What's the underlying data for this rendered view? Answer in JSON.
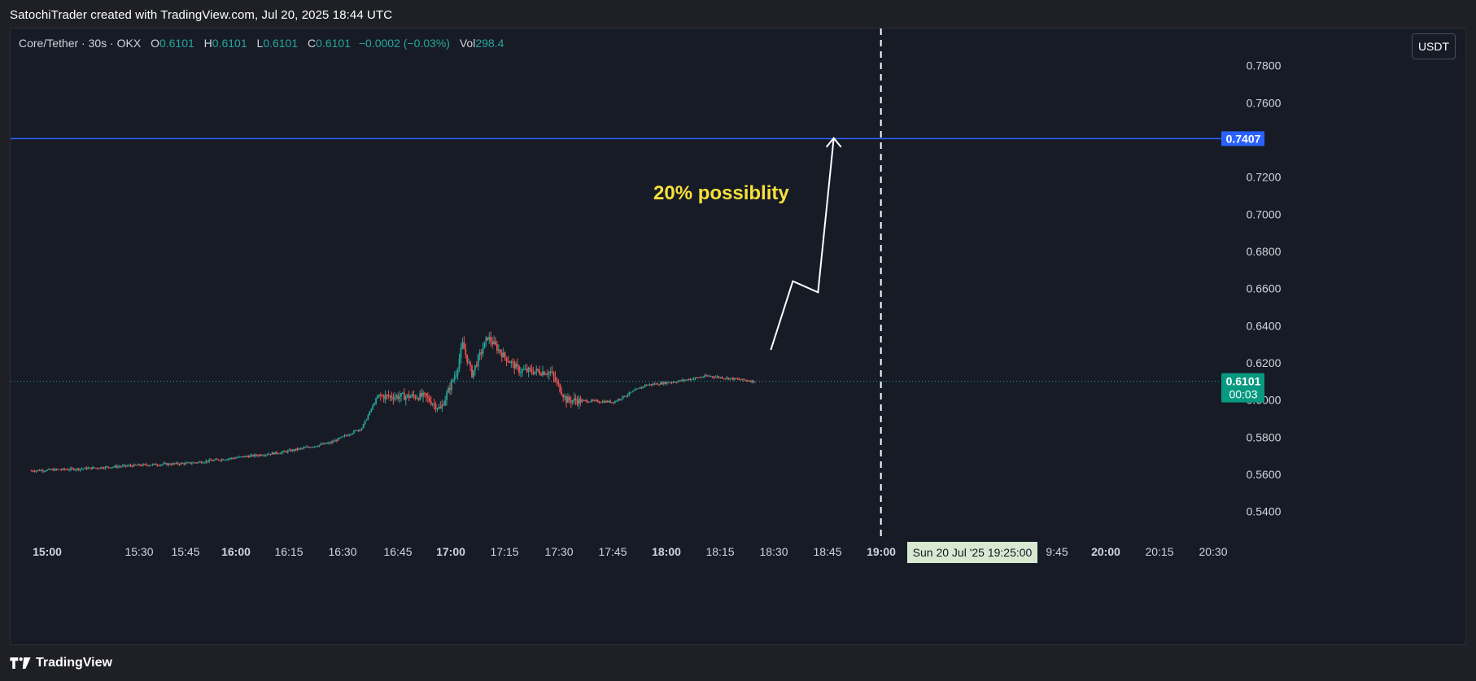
{
  "header": {
    "attribution": "SatochiTrader created with TradingView.com, Jul 20, 2025 18:44 UTC"
  },
  "legend": {
    "symbol": "Core/Tether · 30s · OKX",
    "o_label": "O",
    "o": "0.6101",
    "h_label": "H",
    "h": "0.6101",
    "l_label": "L",
    "l": "0.6101",
    "c_label": "C",
    "c": "0.6101",
    "change": "−0.0002 (−0.03%)",
    "vol_label": "Vol",
    "vol": "298.4"
  },
  "currency_button": "USDT",
  "footer": {
    "brand": "TradingView"
  },
  "colors": {
    "background": "#171b26",
    "up": "#26a69a",
    "down": "#ef5350",
    "target_line": "#2962ff",
    "annotation": "#f7e13a",
    "last_price_bg": "#089981",
    "crosshair_label_bg": "#d7ead1"
  },
  "chart_data": {
    "type": "candlestick",
    "y_ticks": [
      "0.7800",
      "0.7600",
      "0.7200",
      "0.7000",
      "0.6800",
      "0.6600",
      "0.6400",
      "0.6200",
      "0.6000",
      "0.5800",
      "0.5600",
      "0.5400"
    ],
    "x_ticks": [
      {
        "label": "15:00",
        "bold": true
      },
      {
        "label": "15:30",
        "bold": false
      },
      {
        "label": "15:45",
        "bold": false
      },
      {
        "label": "16:00",
        "bold": true
      },
      {
        "label": "16:15",
        "bold": false
      },
      {
        "label": "16:30",
        "bold": false
      },
      {
        "label": "16:45",
        "bold": false
      },
      {
        "label": "17:00",
        "bold": true
      },
      {
        "label": "17:15",
        "bold": false
      },
      {
        "label": "17:30",
        "bold": false
      },
      {
        "label": "17:45",
        "bold": false
      },
      {
        "label": "18:00",
        "bold": true
      },
      {
        "label": "18:15",
        "bold": false
      },
      {
        "label": "18:30",
        "bold": false
      },
      {
        "label": "18:45",
        "bold": false
      },
      {
        "label": "19:00",
        "bold": true
      },
      {
        "label": "9:45",
        "bold": false
      },
      {
        "label": "20:00",
        "bold": true
      },
      {
        "label": "20:15",
        "bold": false
      },
      {
        "label": "20:30",
        "bold": false
      }
    ],
    "y_range": [
      0.525,
      0.8
    ],
    "target_price": "0.7407",
    "last_price": "0.6101",
    "countdown": "00:03",
    "crosshair_time_label": "Sun 20 Jul '25   19:25:00",
    "annotation": "20% possiblity",
    "price_path": [
      [
        "14:55",
        0.562
      ],
      [
        "15:10",
        0.563
      ],
      [
        "15:30",
        0.565
      ],
      [
        "15:45",
        0.566
      ],
      [
        "16:00",
        0.569
      ],
      [
        "16:15",
        0.572
      ],
      [
        "16:30",
        0.577
      ],
      [
        "16:40",
        0.585
      ],
      [
        "16:45",
        0.602
      ],
      [
        "17:00",
        0.602
      ],
      [
        "17:05",
        0.595
      ],
      [
        "17:10",
        0.615
      ],
      [
        "17:12",
        0.63
      ],
      [
        "17:15",
        0.614
      ],
      [
        "17:20",
        0.634
      ],
      [
        "17:25",
        0.624
      ],
      [
        "17:30",
        0.616
      ],
      [
        "17:40",
        0.615
      ],
      [
        "17:45",
        0.6
      ],
      [
        "18:00",
        0.599
      ],
      [
        "18:10",
        0.608
      ],
      [
        "18:20",
        0.61
      ],
      [
        "18:30",
        0.613
      ],
      [
        "18:45",
        0.6101
      ]
    ],
    "projection_path": [
      [
        "18:50",
        0.627
      ],
      [
        "18:57",
        0.664
      ],
      [
        "19:05",
        0.658
      ],
      [
        "19:10",
        0.741
      ]
    ],
    "vertical_marker_time": "19:25"
  }
}
